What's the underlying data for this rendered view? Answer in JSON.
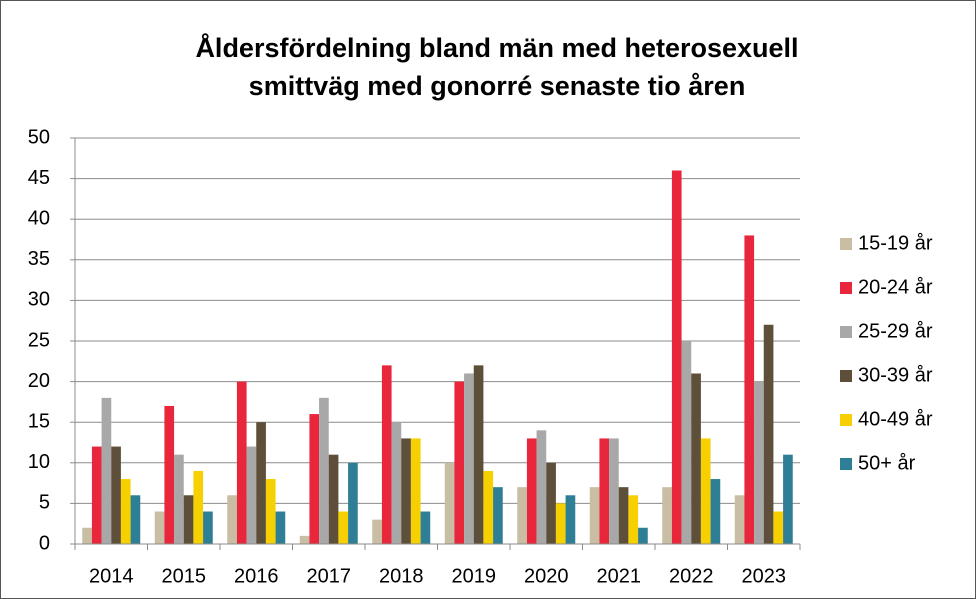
{
  "chart_data": {
    "type": "bar",
    "title": [
      "Åldersfördelning bland män med heterosexuell",
      "smittväg med gonorré senaste tio åren"
    ],
    "categories": [
      "2014",
      "2015",
      "2016",
      "2017",
      "2018",
      "2019",
      "2020",
      "2021",
      "2022",
      "2023"
    ],
    "series": [
      {
        "name": "15-19 år",
        "color": "#c9bda3",
        "values": [
          2,
          4,
          6,
          1,
          3,
          10,
          7,
          7,
          7,
          6
        ]
      },
      {
        "name": "20-24 år",
        "color": "#e8263c",
        "values": [
          12,
          17,
          20,
          16,
          22,
          20,
          13,
          13,
          46,
          38
        ]
      },
      {
        "name": "25-29 år",
        "color": "#a8a8a8",
        "values": [
          18,
          11,
          12,
          18,
          15,
          21,
          14,
          13,
          25,
          20
        ]
      },
      {
        "name": "30-39 år",
        "color": "#5e4f3a",
        "values": [
          12,
          6,
          15,
          11,
          13,
          22,
          10,
          7,
          21,
          27
        ]
      },
      {
        "name": "40-49 år",
        "color": "#f6d000",
        "values": [
          8,
          9,
          8,
          4,
          13,
          9,
          5,
          6,
          13,
          4
        ]
      },
      {
        "name": "50+ år",
        "color": "#2e7f96",
        "values": [
          6,
          4,
          4,
          10,
          4,
          7,
          6,
          2,
          8,
          11
        ]
      }
    ],
    "ylim": [
      0,
      50
    ],
    "yticks": [
      0,
      5,
      10,
      15,
      20,
      25,
      30,
      35,
      40,
      45,
      50
    ],
    "grid": true,
    "legend": "right"
  }
}
